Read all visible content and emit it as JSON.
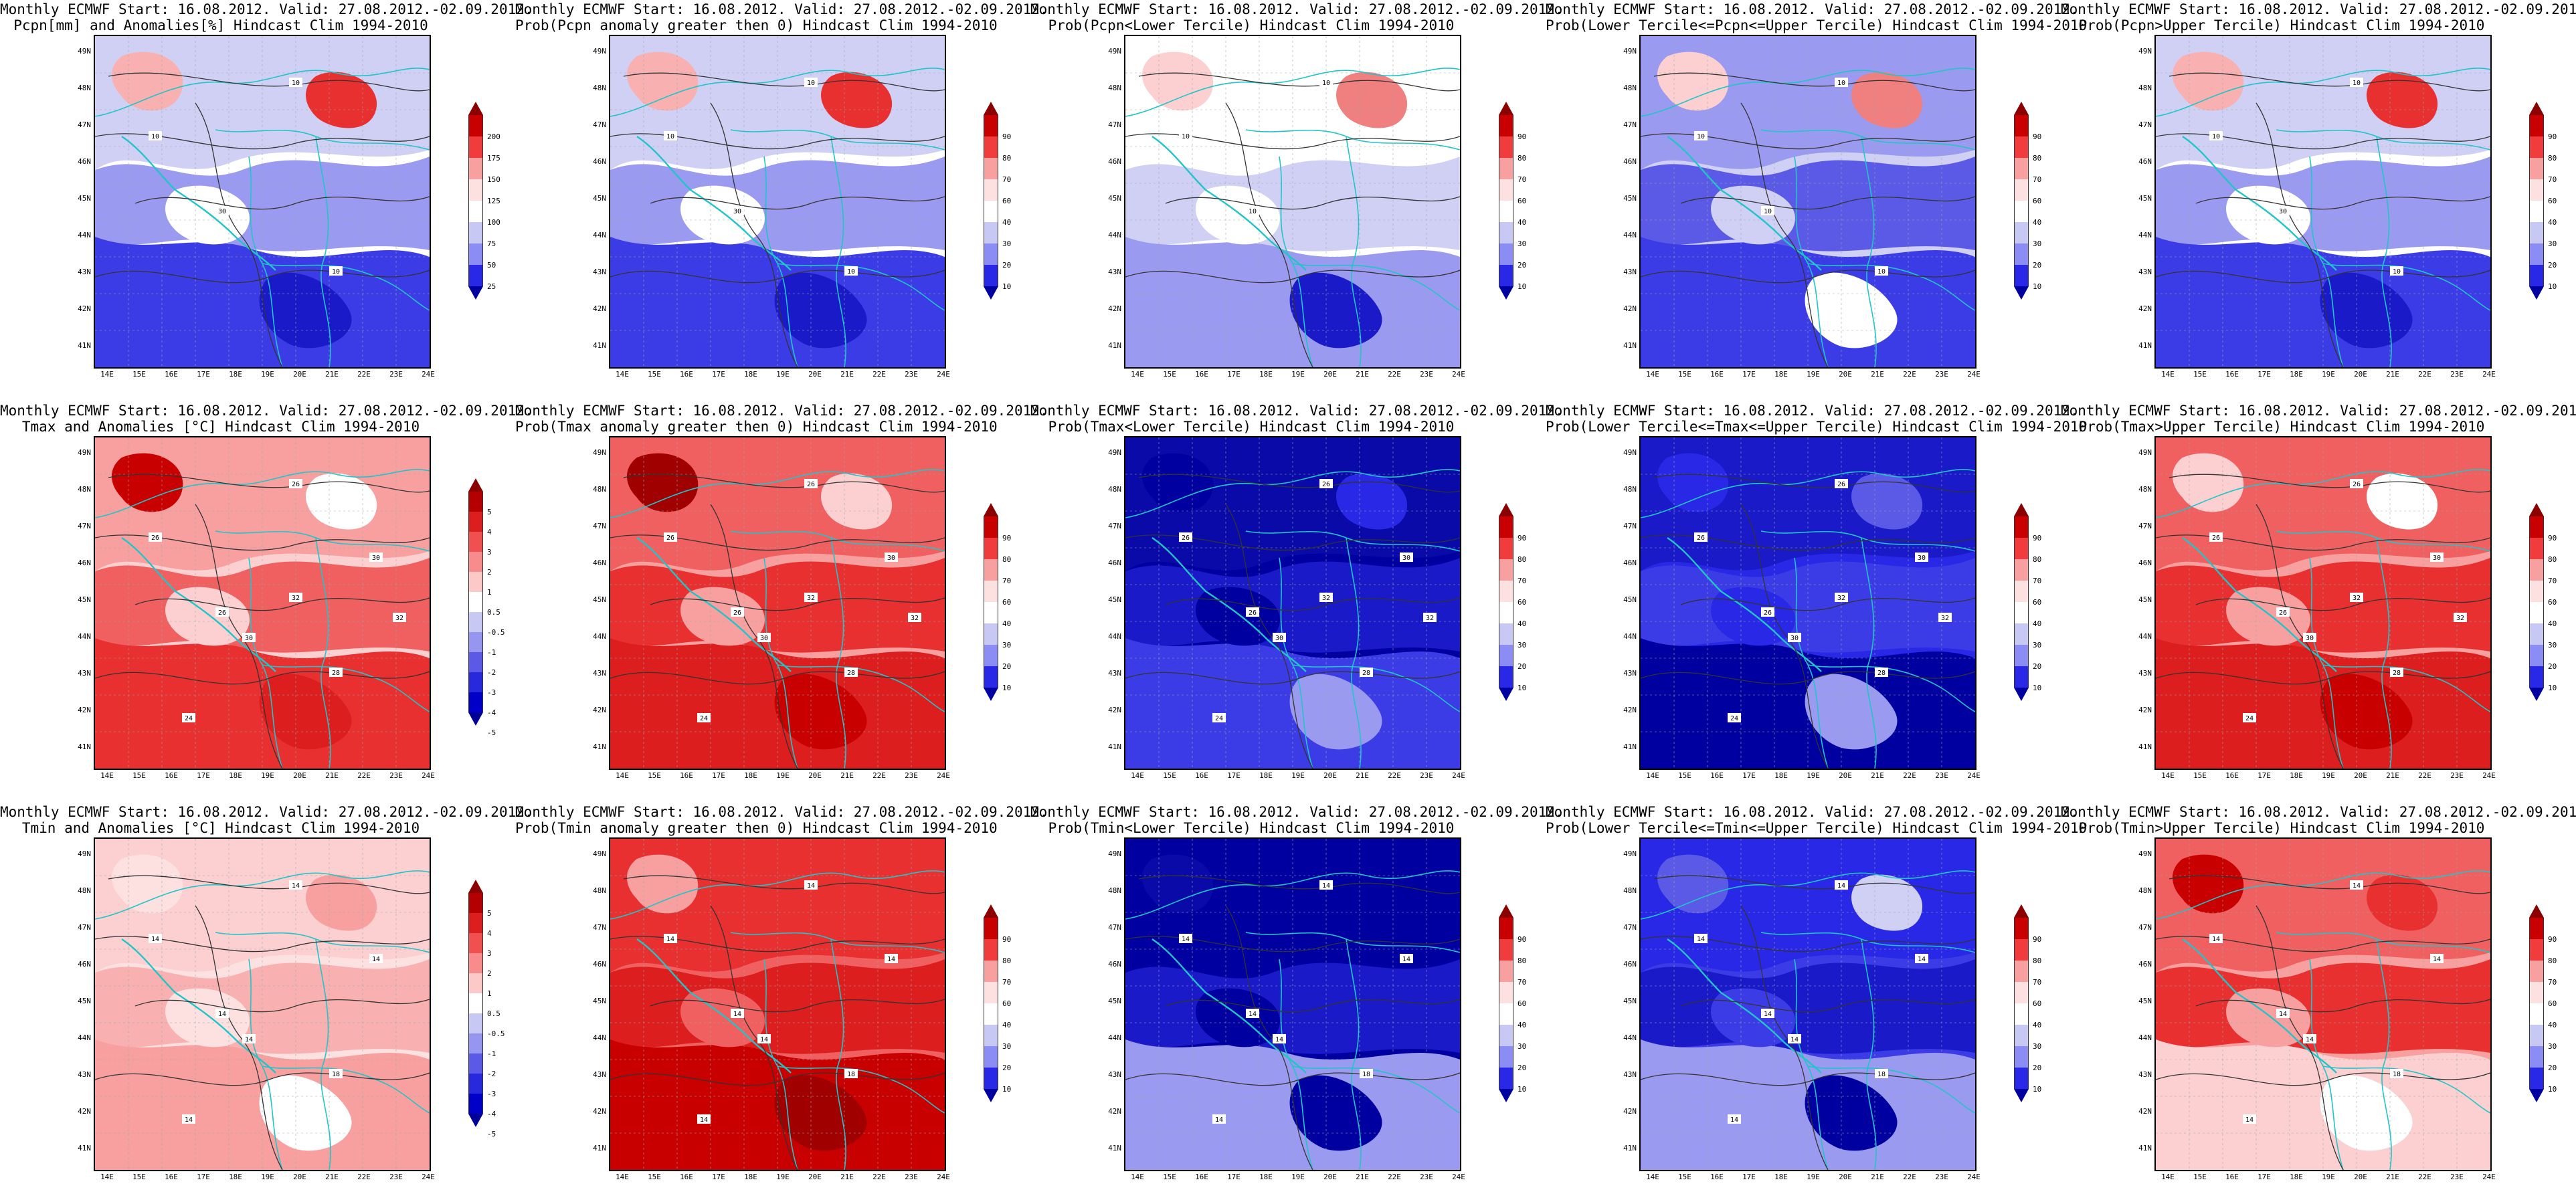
{
  "title_line1": "Monthly ECMWF Start: 16.08.2012. Valid: 27.08.2012.-02.09.2012.",
  "lat_labels": [
    "49N",
    "48N",
    "47N",
    "46N",
    "45N",
    "44N",
    "43N",
    "42N",
    "41N"
  ],
  "lon_labels": [
    "14E",
    "15E",
    "16E",
    "17E",
    "18E",
    "19E",
    "20E",
    "21E",
    "22E",
    "23E",
    "24E"
  ],
  "scales": {
    "anom_pcpn": {
      "labels": [
        "200",
        "175",
        "150",
        "125",
        "100",
        "75",
        "50",
        "25"
      ],
      "colors": [
        "#8b0000",
        "#c80000",
        "#f03c3c",
        "#f8a0a0",
        "#fde0e0",
        "#ffffff",
        "#c8c8f5",
        "#8c8cf5",
        "#2828e6",
        "#0000a0"
      ]
    },
    "anom_temp": {
      "labels": [
        "5",
        "4",
        "3",
        "2",
        "1",
        "0.5",
        "-0.5",
        "-1",
        "-2",
        "-3",
        "-4",
        "-5"
      ],
      "colors": [
        "#8b0000",
        "#b40000",
        "#dc1e1e",
        "#f05050",
        "#f88c8c",
        "#fcc8c8",
        "#ffffff",
        "#c8c8f5",
        "#9696f0",
        "#5a5ae6",
        "#2828dc",
        "#0000c8",
        "#000096"
      ]
    },
    "prob": {
      "labels": [
        "90",
        "80",
        "70",
        "60",
        "40",
        "30",
        "20",
        "10"
      ],
      "colors": [
        "#8b0000",
        "#c80000",
        "#f03c3c",
        "#f8a0a0",
        "#fde0e0",
        "#ffffff",
        "#c8c8f5",
        "#8c8cf5",
        "#2828e6",
        "#0000a0"
      ]
    }
  },
  "panels": [
    {
      "title2": "Pcpn[mm] and Anomalies[%] Hindcast Clim 1994-2010",
      "scale": "anom_pcpn",
      "palette": [
        "#ffffff",
        "#d0d0f5",
        "#9a9af0",
        "#3c3ce6",
        "#1a1ac8",
        "#f8b0b0",
        "#e83030"
      ],
      "contours": [
        "10",
        "10",
        "30",
        "10"
      ]
    },
    {
      "title2": "Prob(Pcpn anomaly greater then 0) Hindcast Clim 1994-2010",
      "scale": "prob",
      "palette": [
        "#ffffff",
        "#d0d0f5",
        "#9a9af0",
        "#3c3ce6",
        "#1a1ac8",
        "#f8b0b0",
        "#e83030"
      ],
      "contours": [
        "10",
        "10",
        "30",
        "10"
      ]
    },
    {
      "title2": "Prob(Pcpn<Lower Tercile) Hindcast Clim 1994-2010",
      "scale": "prob",
      "palette": [
        "#ffffff",
        "#ffffff",
        "#d0d0f5",
        "#9a9af0",
        "#1a1ac8",
        "#fcd0d0",
        "#f08080"
      ],
      "contours": [
        "10",
        "10",
        "10"
      ]
    },
    {
      "title2": "Prob(Lower Tercile<=Pcpn<=Upper Tercile) Hindcast Clim 1994-2010",
      "scale": "prob",
      "palette": [
        "#d0d0f5",
        "#9a9af0",
        "#5a5ae6",
        "#3c3ce6",
        "#ffffff",
        "#fcd0d0",
        "#f08080"
      ],
      "contours": [
        "10",
        "10",
        "10",
        "10"
      ]
    },
    {
      "title2": "Prob(Pcpn>Upper Tercile) Hindcast Clim 1994-2010",
      "scale": "prob",
      "palette": [
        "#ffffff",
        "#d0d0f5",
        "#9a9af0",
        "#3c3ce6",
        "#1a1ac8",
        "#f8b0b0",
        "#e83030"
      ],
      "contours": [
        "10",
        "10",
        "30",
        "10"
      ]
    },
    {
      "title2": "Tmax and Anomalies [°C] Hindcast Clim 1994-2010",
      "scale": "anom_temp",
      "palette": [
        "#fcd0d0",
        "#f8a0a0",
        "#f06060",
        "#e83030",
        "#dc1e1e",
        "#c80000",
        "#ffffff"
      ],
      "contours": [
        "26",
        "26",
        "26",
        "28",
        "30",
        "30",
        "24",
        "32",
        "32"
      ]
    },
    {
      "title2": "Prob(Tmax anomaly greater then 0) Hindcast Clim 1994-2010",
      "scale": "prob",
      "palette": [
        "#f8a0a0",
        "#f06060",
        "#e83030",
        "#dc1e1e",
        "#c80000",
        "#a00000",
        "#fcd0d0"
      ],
      "contours": [
        "26",
        "26",
        "26",
        "28",
        "30",
        "30",
        "24",
        "32",
        "32"
      ]
    },
    {
      "title2": "Prob(Tmax<Lower Tercile) Hindcast Clim 1994-2010",
      "scale": "prob",
      "palette": [
        "#0000a0",
        "#0a0aa8",
        "#1a1ac8",
        "#3c3ce6",
        "#9a9af0",
        "#0000a0",
        "#2828e6"
      ],
      "contours": [
        "26",
        "26",
        "26",
        "28",
        "30",
        "30",
        "24",
        "32",
        "32"
      ]
    },
    {
      "title2": "Prob(Lower Tercile<=Tmax<=Upper Tercile) Hindcast Clim 1994-2010",
      "scale": "prob",
      "palette": [
        "#2828e6",
        "#1a1ac8",
        "#3c3ce6",
        "#0000a0",
        "#9a9af0",
        "#2828e6",
        "#5a5ae6"
      ],
      "contours": [
        "26",
        "26",
        "26",
        "28",
        "30",
        "30",
        "24",
        "32",
        "32"
      ]
    },
    {
      "title2": "Prob(Tmax>Upper Tercile) Hindcast Clim 1994-2010",
      "scale": "prob",
      "palette": [
        "#f8a0a0",
        "#f06060",
        "#e83030",
        "#dc1e1e",
        "#c80000",
        "#fcd0d0",
        "#ffffff"
      ],
      "contours": [
        "26",
        "26",
        "26",
        "28",
        "30",
        "30",
        "24",
        "32",
        "32"
      ]
    },
    {
      "title2": "Tmin and Anomalies [°C] Hindcast Clim 1994-2010",
      "scale": "anom_temp",
      "palette": [
        "#fde0e0",
        "#fcd0d0",
        "#f8b0b0",
        "#f8a0a0",
        "#ffffff",
        "#fde0e0",
        "#f8a0a0"
      ],
      "contours": [
        "14",
        "14",
        "14",
        "18",
        "14",
        "14",
        "14"
      ]
    },
    {
      "title2": "Prob(Tmin anomaly greater then 0) Hindcast Clim 1994-2010",
      "scale": "prob",
      "palette": [
        "#f06060",
        "#e83030",
        "#dc1e1e",
        "#c80000",
        "#a00000",
        "#f8a0a0",
        "#e83030"
      ],
      "contours": [
        "14",
        "14",
        "14",
        "18",
        "14",
        "14",
        "14"
      ]
    },
    {
      "title2": "Prob(Tmin<Lower Tercile) Hindcast Clim 1994-2010",
      "scale": "prob",
      "palette": [
        "#0000a0",
        "#0000a0",
        "#1a1ac8",
        "#9a9af0",
        "#0000a0",
        "#0a0aa8",
        "#0000a0"
      ],
      "contours": [
        "14",
        "14",
        "14",
        "18",
        "14",
        "14",
        "14"
      ]
    },
    {
      "title2": "Prob(Lower Tercile<=Tmin<=Upper Tercile) Hindcast Clim 1994-2010",
      "scale": "prob",
      "palette": [
        "#3c3ce6",
        "#2828e6",
        "#1a1ac8",
        "#9a9af0",
        "#0000a0",
        "#5a5ae6",
        "#d0d0f5"
      ],
      "contours": [
        "14",
        "14",
        "14",
        "18",
        "14",
        "14",
        "14"
      ]
    },
    {
      "title2": "Prob(Tmin>Upper Tercile) Hindcast Clim 1994-2010",
      "scale": "prob",
      "palette": [
        "#f8a0a0",
        "#f06060",
        "#e83030",
        "#fcd0d0",
        "#ffffff",
        "#c80000",
        "#e83030"
      ],
      "contours": [
        "14",
        "14",
        "14",
        "18",
        "14",
        "14",
        "14"
      ]
    }
  ]
}
